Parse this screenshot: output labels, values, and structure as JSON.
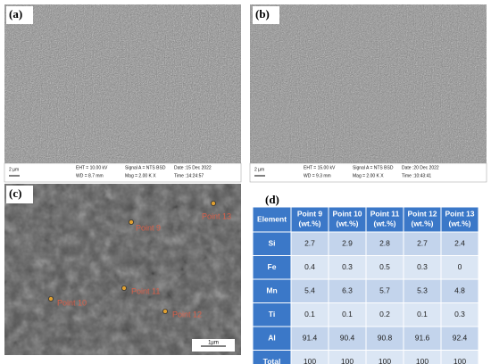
{
  "panels": {
    "a": {
      "label": "(a)",
      "scale": "2 µm",
      "eht": "EHT = 10.00 kV",
      "wd": "WD = 8.7 mm",
      "signal": "Signal A = NTS BSD",
      "mag": "Mag = 2.00 K X",
      "date": "Date :15 Dec 2022",
      "time": "Time :14:24:57"
    },
    "b": {
      "label": "(b)",
      "scale": "2 µm",
      "eht": "EHT = 15.00 kV",
      "wd": "WD = 9.3 mm",
      "signal": "Signal A = NTS BSD",
      "mag": "Mag = 2.00 K X",
      "date": "Date :20 Dec 2022",
      "time": "Time :10:43:41"
    },
    "c": {
      "label": "(c)",
      "scale": "1µm",
      "points": [
        "Point 9",
        "Point 10",
        "Point 11",
        "Point 12",
        "Point 13"
      ]
    },
    "d": {
      "label": "(d)"
    }
  },
  "table": {
    "header": [
      [
        "Element"
      ],
      [
        "Point 9",
        "(wt.%)"
      ],
      [
        "Point 10",
        "(wt.%)"
      ],
      [
        "Point 11",
        "(wt.%)"
      ],
      [
        "Point 12",
        "(wt.%)"
      ],
      [
        "Point 13",
        "(wt.%)"
      ]
    ],
    "rows": [
      [
        "Si",
        "2.7",
        "2.9",
        "2.8",
        "2.7",
        "2.4"
      ],
      [
        "Fe",
        "0.4",
        "0.3",
        "0.5",
        "0.3",
        "0"
      ],
      [
        "Mn",
        "5.4",
        "6.3",
        "5.7",
        "5.3",
        "4.8"
      ],
      [
        "Ti",
        "0.1",
        "0.1",
        "0.2",
        "0.1",
        "0.3"
      ],
      [
        "Al",
        "91.4",
        "90.4",
        "90.8",
        "91.6",
        "92.4"
      ],
      [
        "Total",
        "100",
        "100",
        "100",
        "100",
        "100"
      ]
    ]
  }
}
